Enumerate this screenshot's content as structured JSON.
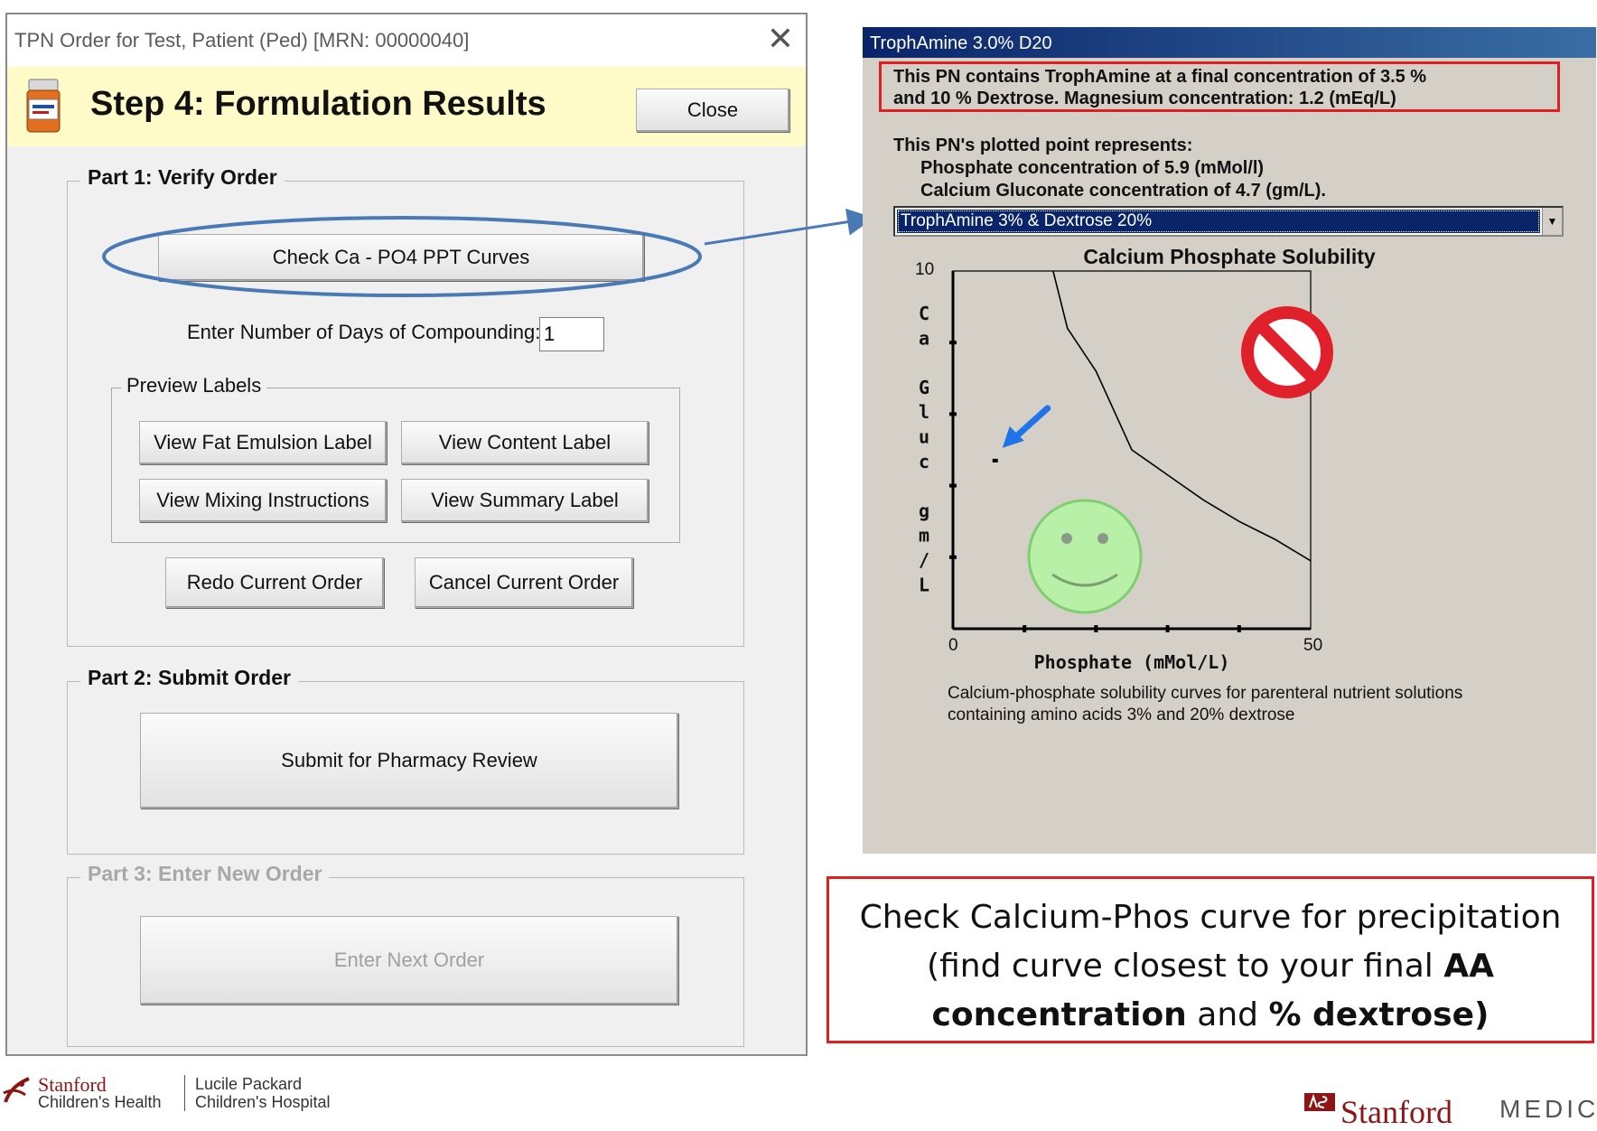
{
  "dialog": {
    "title": "TPN Order for Test, Patient (Ped) [MRN: 00000040]",
    "close_glyph": "✕",
    "step_title": "Step 4: Formulation Results",
    "close_button": "Close",
    "part1": {
      "title": "Part 1: Verify Order",
      "check_curves_button": "Check Ca - PO4 PPT Curves",
      "days_label": "Enter Number of Days of Compounding:",
      "days_value": "1",
      "preview_labels": {
        "title": "Preview Labels",
        "fat_emulsion": "View Fat Emulsion Label",
        "content": "View Content Label",
        "mixing": "View Mixing Instructions",
        "summary": "View Summary Label"
      },
      "redo_button": "Redo Current Order",
      "cancel_button": "Cancel Current Order"
    },
    "part2": {
      "title": "Part 2: Submit Order",
      "submit_button": "Submit for Pharmacy Review"
    },
    "part3": {
      "title": "Part 3: Enter New Order",
      "next_order_button": "Enter Next Order"
    }
  },
  "troph_window": {
    "title": "TrophAmine 3.0% D20",
    "info_line1": "This PN contains TrophAmine at a final concentration of 3.5 %",
    "info_line2": "and 10 % Dextrose. Magnesium concentration: 1.2 (mEq/L)",
    "plotted_line1": "This PN's plotted point represents:",
    "plotted_line2": "Phosphate concentration of 5.9 (mMol/l)",
    "plotted_line3": "Calcium Gluconate concentration of 4.7 (gm/L).",
    "curve_select_value": "TrophAmine 3% & Dextrose 20%",
    "caption_line1": "Calcium-phosphate solubility curves for parenteral nutrient solutions",
    "caption_line2": "containing amino acids 3% and 20% dextrose"
  },
  "chart_data": {
    "type": "line",
    "title": "Calcium Phosphate Solubility",
    "xlabel": "Phosphate (mMol/L)",
    "ylabel_letters": [
      "C",
      "a",
      "",
      "G",
      "l",
      "u",
      "c",
      "",
      "g",
      "m",
      "/",
      "L"
    ],
    "xlim": [
      0,
      50
    ],
    "ylim": [
      0,
      10
    ],
    "x_tick_labels": [
      "0",
      "50"
    ],
    "y_tick_labels": [
      "10"
    ],
    "x_minor_ticks": [
      10,
      20,
      30,
      40
    ],
    "y_minor_ticks": [
      2,
      4,
      6,
      8
    ],
    "series": [
      {
        "x": [
          14,
          16,
          20,
          25,
          30,
          35,
          40,
          45,
          50
        ],
        "y": [
          10,
          8.4,
          7.2,
          5.0,
          4.3,
          3.6,
          3.0,
          2.5,
          1.9
        ]
      }
    ],
    "point": {
      "x": 5.9,
      "y": 4.7
    },
    "line_color": "#000000",
    "background": "#d4d0c8"
  },
  "icons": {
    "bottle": "pill-bottle-icon",
    "prohibited": "prohibited-icon",
    "smiley": "smiley-face-icon",
    "pointer_arrow": "blue-arrow-icon"
  },
  "colors": {
    "header_bg": "#fffbc8",
    "highlight_red": "#e02020",
    "ellipse_blue": "#4a7ab5",
    "selection_blue": "#0a246a"
  },
  "callout": {
    "text_before": "Check Calcium-Phos curve for precipitation (find curve closest to your final ",
    "bold_aa": "AA concentration",
    "text_and": " and ",
    "bold_dextrose": "% dextrose)"
  },
  "footer": {
    "sch_name": "Stanford",
    "sch_sub": "Children's Health",
    "lpch_line1": "Lucile Packard",
    "lpch_line2": "Children's Hospital",
    "med_name": "Stanford",
    "med_sub": "MEDICINE"
  }
}
